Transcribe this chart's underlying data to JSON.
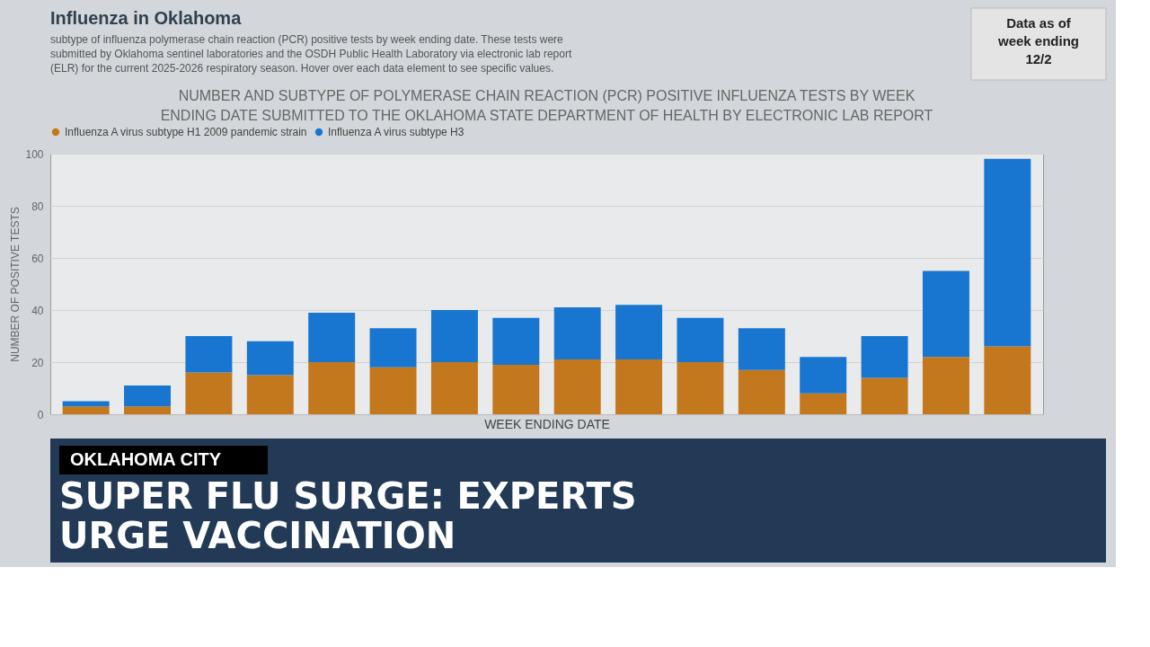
{
  "chart_data": {
    "type": "bar",
    "title": "NUMBER AND SUBTYPE OF POLYMERASE CHAIN REACTION (PCR) POSITIVE INFLUENZA TESTS BY WEEK ENDING DATE SUBMITTED TO THE OKLAHOMA STATE DEPARTMENT OF HEALTH BY ELECTRONIC LAB REPORT",
    "xlabel": "WEEK ENDING DATE",
    "ylabel": "NUMBER OF POSITIVE TESTS",
    "categories": [
      null,
      null,
      null,
      null,
      null,
      null,
      null,
      null,
      null,
      null,
      null,
      null,
      null,
      null,
      null,
      null
    ],
    "series": [
      {
        "name": "Influenza A virus subtype H1 2009 pandemic strain",
        "color": "#c4781e",
        "values": [
          3,
          3,
          16,
          15,
          20,
          18,
          20,
          19,
          21,
          21,
          20,
          17,
          8,
          14,
          22,
          26
        ]
      },
      {
        "name": "Influenza A virus subtype H3",
        "color": "#1876d0",
        "values": [
          2,
          8,
          14,
          13,
          19,
          15,
          20,
          18,
          20,
          21,
          17,
          16,
          14,
          16,
          33,
          72
        ]
      }
    ],
    "stacked": true,
    "ylim": [
      0,
      100
    ],
    "yticks": [
      0,
      20,
      40,
      60,
      80,
      100
    ],
    "grid": "y",
    "legend": "top",
    "tick_labels": "y",
    "annotations": [
      "Influenza in Oklahoma",
      "subtype of influenza polymerase chain reaction (PCR) positive tests by week ending date. These tests were submitted by Oklahoma sentinel laboratories and the OSDH Public Health Laboratory via electronic lab report (ELR) for the current 2025-2026 respiratory season. Hover over each data element to see specific values.",
      "Data as of week ending 12/2",
      "OKLAHOMA CITY",
      "SUPER FLU SURGE: EXPERTS URGE VACCINATION"
    ]
  }
}
